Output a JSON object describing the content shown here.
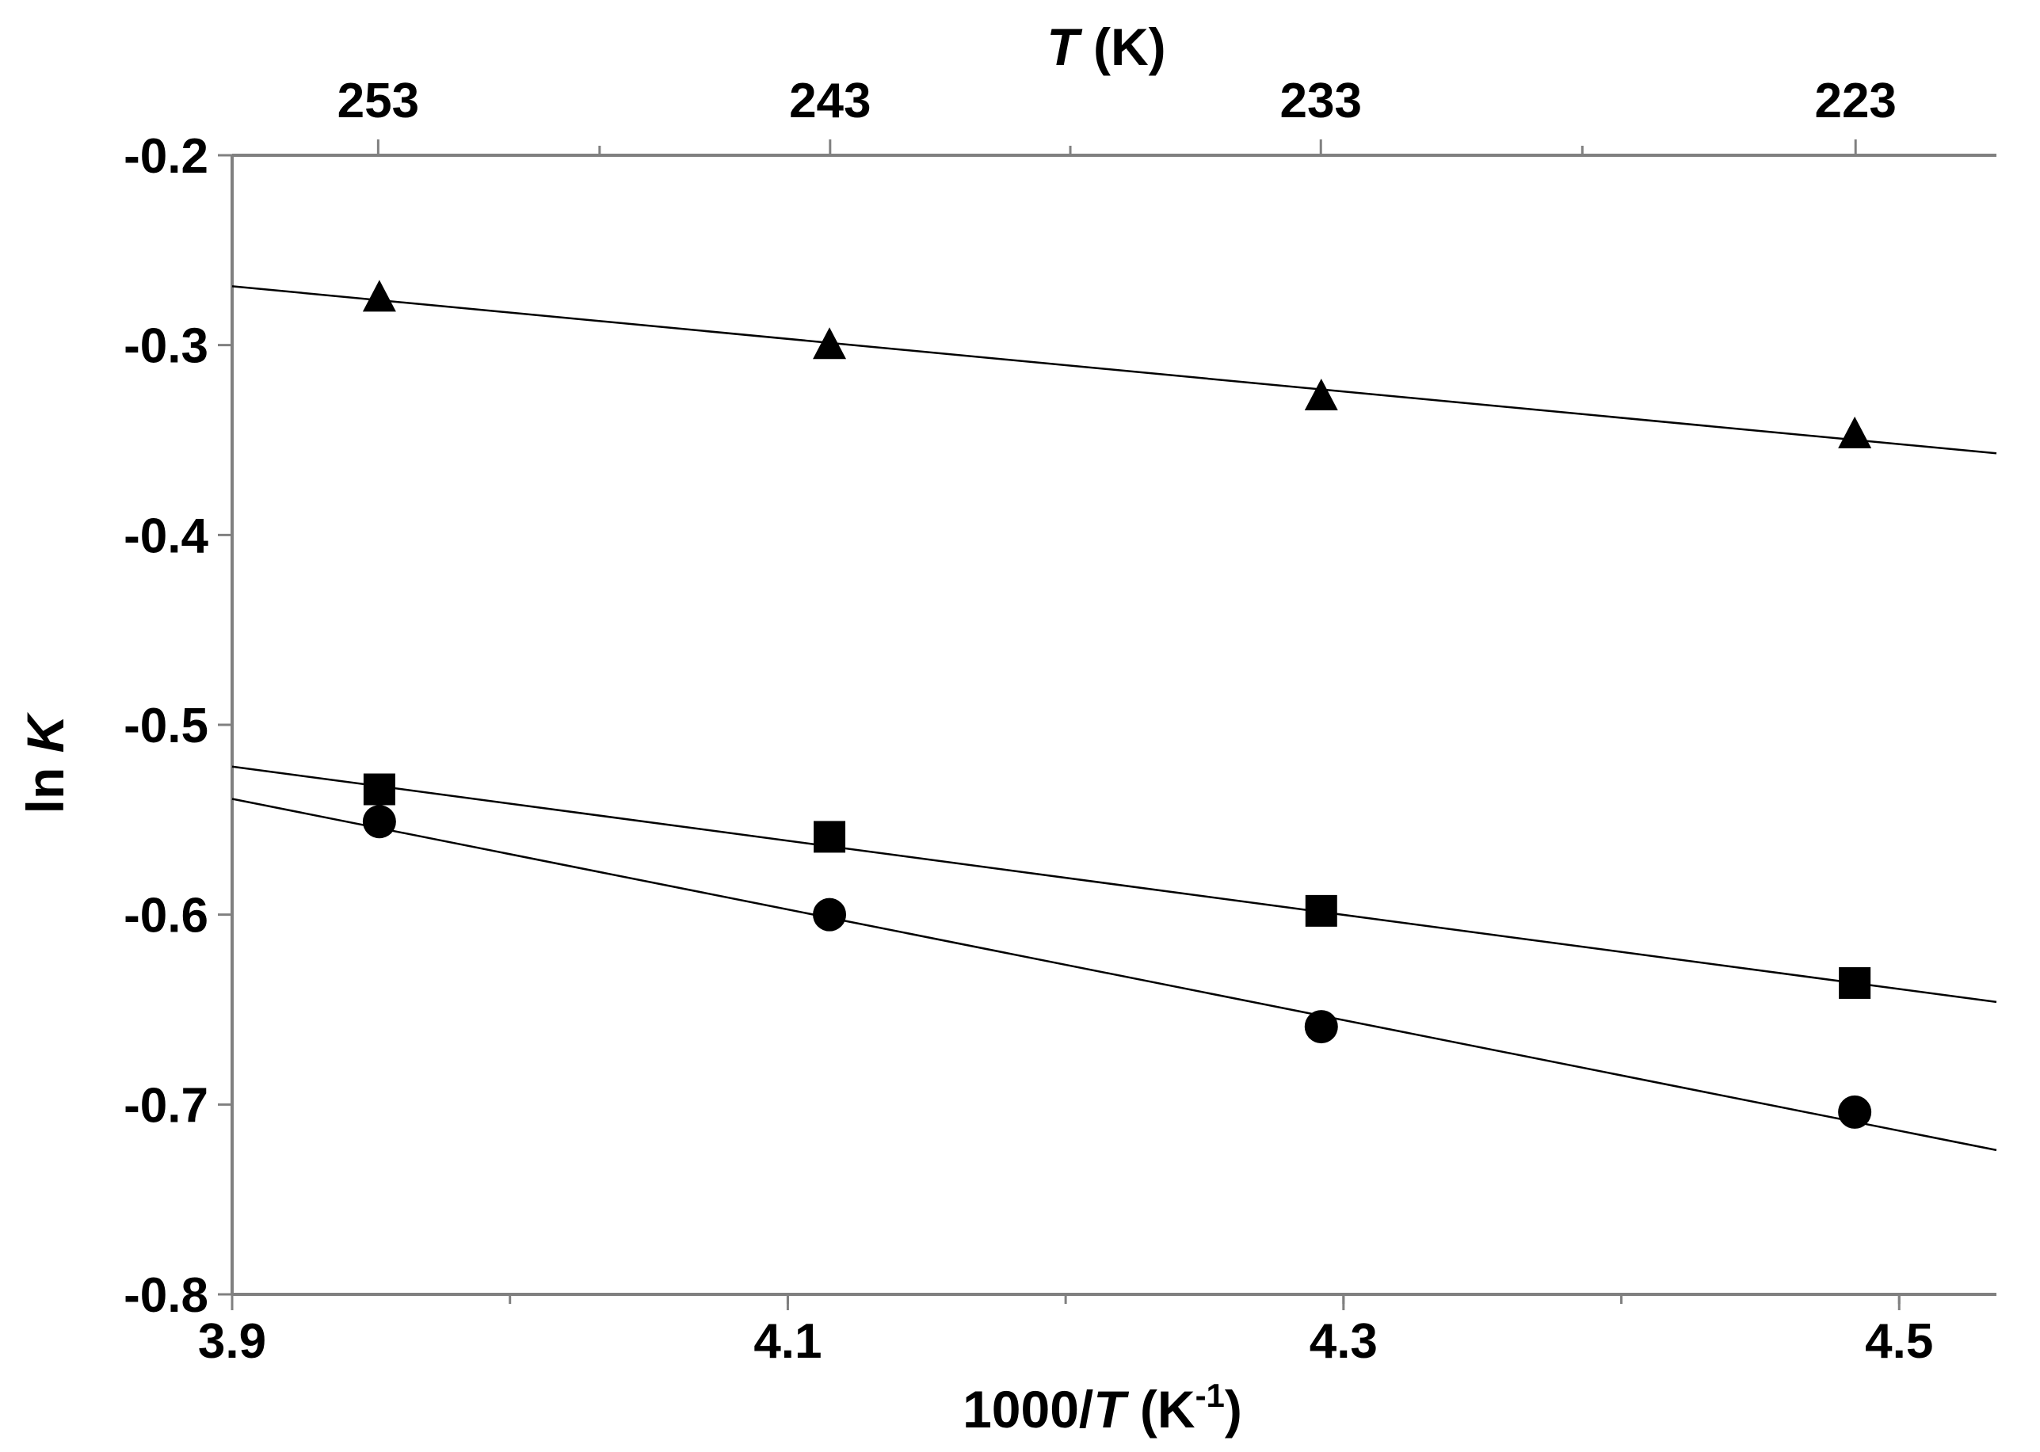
{
  "chart_data": {
    "type": "scatter",
    "title": "",
    "xlabel": {
      "prefix": "1000/",
      "var": "T",
      "units": " (K",
      "sup": "-1",
      "close": ")"
    },
    "x2label": {
      "var": "T",
      "units": " (K)"
    },
    "ylabel": {
      "prefix": "ln ",
      "var": "K"
    },
    "xlim": [
      3.9,
      4.535
    ],
    "ylim": [
      -0.8,
      -0.2
    ],
    "grid": false,
    "legend": "none",
    "x_ticks": [
      "3.9",
      "4.1",
      "4.3",
      "4.5"
    ],
    "x_tick_values": [
      3.9,
      4.1,
      4.3,
      4.5
    ],
    "x_minor_step": 0.1,
    "y_ticks": [
      "-0.2",
      "-0.3",
      "-0.4",
      "-0.5",
      "-0.6",
      "-0.7",
      "-0.8"
    ],
    "y_tick_values": [
      -0.2,
      -0.3,
      -0.4,
      -0.5,
      -0.6,
      -0.7,
      -0.8
    ],
    "top_ticks": [
      "253",
      "243",
      "233",
      "223"
    ],
    "top_tick_T": [
      253,
      243,
      233,
      223
    ],
    "top_minor_T": [
      248,
      238,
      228
    ],
    "series": [
      {
        "marker": "triangle",
        "color": "#000000",
        "x": [
          3.953,
          4.115,
          4.292,
          4.484
        ],
        "y": [
          -0.276,
          -0.301,
          -0.328,
          -0.348
        ],
        "fit": {
          "x": [
            3.9,
            4.535
          ],
          "y": [
            -0.269,
            -0.357
          ]
        }
      },
      {
        "marker": "square",
        "color": "#000000",
        "x": [
          3.953,
          4.115,
          4.292,
          4.484
        ],
        "y": [
          -0.534,
          -0.559,
          -0.598,
          -0.636
        ],
        "fit": {
          "x": [
            3.9,
            4.535
          ],
          "y": [
            -0.522,
            -0.646
          ]
        }
      },
      {
        "marker": "circle",
        "color": "#000000",
        "x": [
          3.953,
          4.115,
          4.292,
          4.484
        ],
        "y": [
          -0.551,
          -0.6,
          -0.659,
          -0.704
        ],
        "fit": {
          "x": [
            3.9,
            4.535
          ],
          "y": [
            -0.539,
            -0.724
          ]
        }
      }
    ]
  }
}
